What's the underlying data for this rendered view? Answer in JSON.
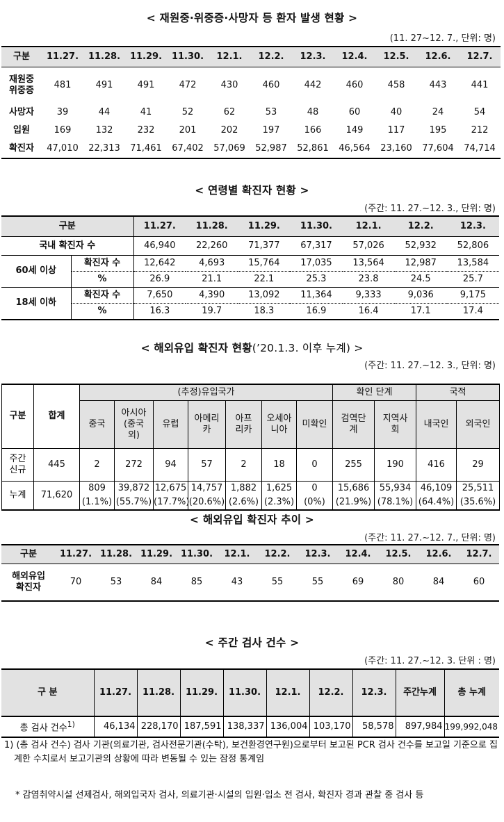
{
  "s1": {
    "title": "< 재원중·위중증·사망자 등 환자 발생 현황    >",
    "unit": "(11. 27~12. 7., 단위: 명)",
    "header": [
      "구분",
      "11.27.",
      "11.28.",
      "11.29.",
      "11.30.",
      "12.1.",
      "12.2.",
      "12.3.",
      "12.4.",
      "12.5.",
      "12.6.",
      "12.7."
    ],
    "rows": [
      {
        "label": "재원중\n위중증",
        "values": [
          "481",
          "491",
          "491",
          "472",
          "430",
          "460",
          "442",
          "460",
          "458",
          "443",
          "441"
        ]
      },
      {
        "label": "사망자",
        "values": [
          "39",
          "44",
          "41",
          "52",
          "62",
          "53",
          "48",
          "60",
          "40",
          "24",
          "54"
        ]
      },
      {
        "label": "입원",
        "values": [
          "169",
          "132",
          "232",
          "201",
          "202",
          "197",
          "166",
          "149",
          "117",
          "195",
          "212"
        ]
      },
      {
        "label": "확진자",
        "values": [
          "47,010",
          "22,313",
          "71,461",
          "67,402",
          "57,069",
          "52,987",
          "52,861",
          "46,564",
          "23,160",
          "77,604",
          "74,714"
        ]
      }
    ]
  },
  "s2": {
    "title": "< 연령별 확진자 현황 >",
    "unit": "(주간: 11. 27.~12. 3., 단위: 명)",
    "header": [
      "구분",
      "11.27.",
      "11.28.",
      "11.29.",
      "11.30.",
      "12.1.",
      "12.2.",
      "12.3."
    ],
    "domestic": {
      "label": "국내 확진자 수",
      "values": [
        "46,940",
        "22,260",
        "71,377",
        "67,317",
        "57,026",
        "52,932",
        "52,806"
      ]
    },
    "groups": [
      {
        "label": "60세 이상",
        "sub1": "확진자 수",
        "v1": [
          "12,642",
          "4,693",
          "15,764",
          "17,035",
          "13,564",
          "12,987",
          "13,584"
        ],
        "sub2": "%",
        "v2": [
          "26.9",
          "21.1",
          "22.1",
          "25.3",
          "23.8",
          "24.5",
          "25.7"
        ]
      },
      {
        "label": "18세 이하",
        "sub1": "확진자 수",
        "v1": [
          "7,650",
          "4,390",
          "13,092",
          "11,364",
          "9,333",
          "9,036",
          "9,175"
        ],
        "sub2": "%",
        "v2": [
          "16.3",
          "19.7",
          "18.3",
          "16.9",
          "16.4",
          "17.1",
          "17.4"
        ]
      }
    ]
  },
  "s3": {
    "title": "< 해외유입 확진자 현황",
    "title_suffix": "(’20.1.3. 이후 누계) >",
    "unit": "(주간: 11. 27.~12. 3., 단위: 명)",
    "h_gubun": "구분",
    "h_total": "합계",
    "h_group1": "(추정)유입국가",
    "h_group2": "확인 단계",
    "h_group3": "국적",
    "cols": [
      "중국",
      "아시아\n(중국\n외)",
      "유럽",
      "아메리\n카",
      "아프\n리카",
      "오세아\n니아",
      "미확인",
      "검역단\n계",
      "지역사\n회",
      "내국인",
      "외국인"
    ],
    "weekly": {
      "label": "주간\n신규",
      "total": "445",
      "values": [
        "2",
        "272",
        "94",
        "57",
        "2",
        "18",
        "0",
        "255",
        "190",
        "416",
        "29"
      ]
    },
    "cumulative": {
      "label": "누계",
      "total": "71,620",
      "values": [
        "809",
        "39,872",
        "12,675",
        "14,757",
        "1,882",
        "1,625",
        "0",
        "15,686",
        "55,934",
        "46,109",
        "25,511"
      ],
      "pcts": [
        "(1.1%)",
        "(55.7%)",
        "(17.7%)",
        "(20.6%)",
        "(2.6%)",
        "(2.3%)",
        "(0%)",
        "(21.9%)",
        "(78.1%)",
        "(64.4%)",
        "(35.6%)"
      ]
    }
  },
  "s4": {
    "title": "< 해외유입 확진자 추이 >",
    "unit": "(주간: 11. 27.~12. 7., 단위: 명)",
    "header": [
      "구분",
      "11.27.",
      "11.28.",
      "11.29.",
      "11.30.",
      "12.1.",
      "12.2.",
      "12.3.",
      "12.4.",
      "12.5.",
      "12.6.",
      "12.7."
    ],
    "row": {
      "label": "해외유입\n확진자",
      "values": [
        "70",
        "53",
        "84",
        "85",
        "43",
        "55",
        "55",
        "69",
        "80",
        "84",
        "60"
      ]
    }
  },
  "s5": {
    "title": "< 주간 검사 건수 >",
    "unit": "(주간: 11. 27.~12. 3. 단위 : 명)",
    "header": [
      "구 분",
      "11.27.",
      "11.28.",
      "11.29.",
      "11.30.",
      "12.1.",
      "12.2.",
      "12.3.",
      "주간누계",
      "총 누계"
    ],
    "row": {
      "label": "총 검사 건수",
      "sup": "1)",
      "values": [
        "46,134",
        "228,170",
        "187,591",
        "138,337",
        "136,004",
        "103,170",
        "58,578",
        "897,984",
        "199,992,048"
      ]
    }
  },
  "notes": {
    "n1": "1) (총 검사 건수) 검사 기관(의료기관, 검사전문기관(수탁), 보건환경연구원)으로부터 보고된 PCR 검사 건수를 보고일 기준으로 집계한 수치로서 보고기관의 상황에 따라 변동될 수 있는 잠정 통계임",
    "n2": "* 감염취약시설 선제검사, 해외입국자 검사, 의료기관·시설의 입원·입소 전 검사, 확진자 경과 관찰 중 검사 등"
  }
}
